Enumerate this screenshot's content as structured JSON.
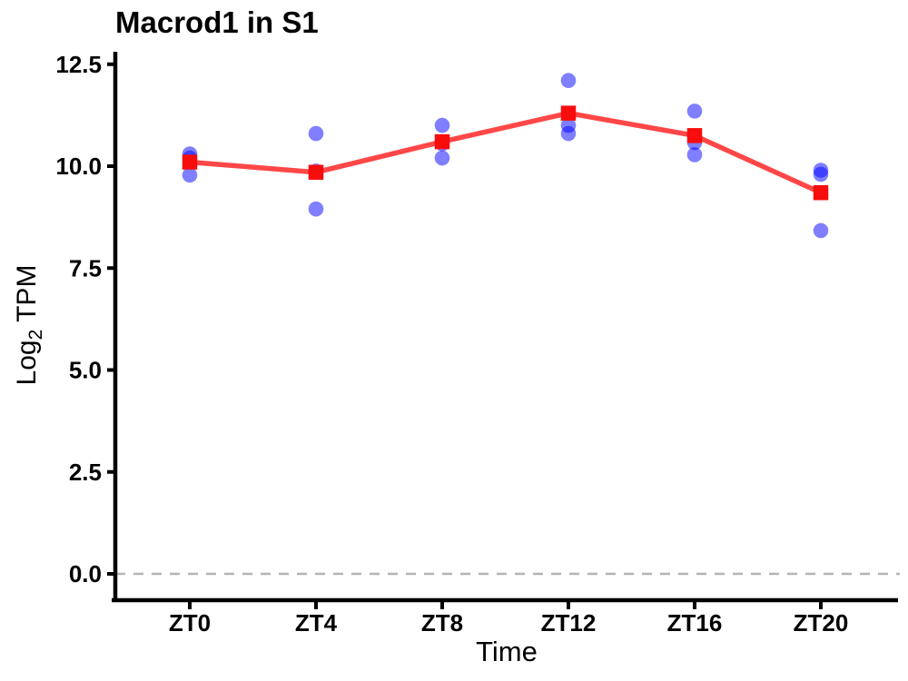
{
  "title": "Macrod1 in S1",
  "chart_data": {
    "type": "scatter",
    "title": "Macrod1 in S1",
    "xlabel": "Time",
    "ylabel": {
      "prefix": "Log",
      "sub": "2",
      "suffix": " TPM"
    },
    "categories": [
      "ZT0",
      "ZT4",
      "ZT8",
      "ZT12",
      "ZT16",
      "ZT20"
    ],
    "y_tick_values": [
      12.5,
      10.0,
      7.5,
      5.0,
      2.5,
      0.0
    ],
    "y_tick_labels": [
      "12.5",
      "10.0",
      "7.5",
      "5.0",
      "2.5",
      "0.0"
    ],
    "ylim": [
      0,
      12.5
    ],
    "grid": false,
    "legend_position": "none",
    "reference_line": {
      "y": 0.0,
      "style": "dashed",
      "color": "#b4b4b4"
    },
    "series": [
      {
        "name": "replicate-points",
        "type": "scatter",
        "marker": "circle",
        "color": "rgba(0,0,255,0.5)",
        "values_by_category": [
          [
            10.3,
            10.2,
            9.78
          ],
          [
            10.8,
            9.88,
            8.95
          ],
          [
            11.0,
            10.55,
            10.2
          ],
          [
            12.1,
            11.0,
            10.8
          ],
          [
            11.35,
            10.58,
            10.28
          ],
          [
            9.9,
            9.8,
            8.42
          ]
        ]
      },
      {
        "name": "mean-line",
        "type": "line",
        "marker": "square",
        "line_color": "rgba(255,0,0,0.72)",
        "marker_color": "#f80d0d",
        "values": [
          10.1,
          9.85,
          10.6,
          11.3,
          10.75,
          9.35
        ]
      }
    ]
  },
  "style": {
    "axis_color": "#000000",
    "tick_label_color": "#000000",
    "dot_radius": 8.3,
    "square_size": 16.5,
    "line_width": 5.5
  }
}
